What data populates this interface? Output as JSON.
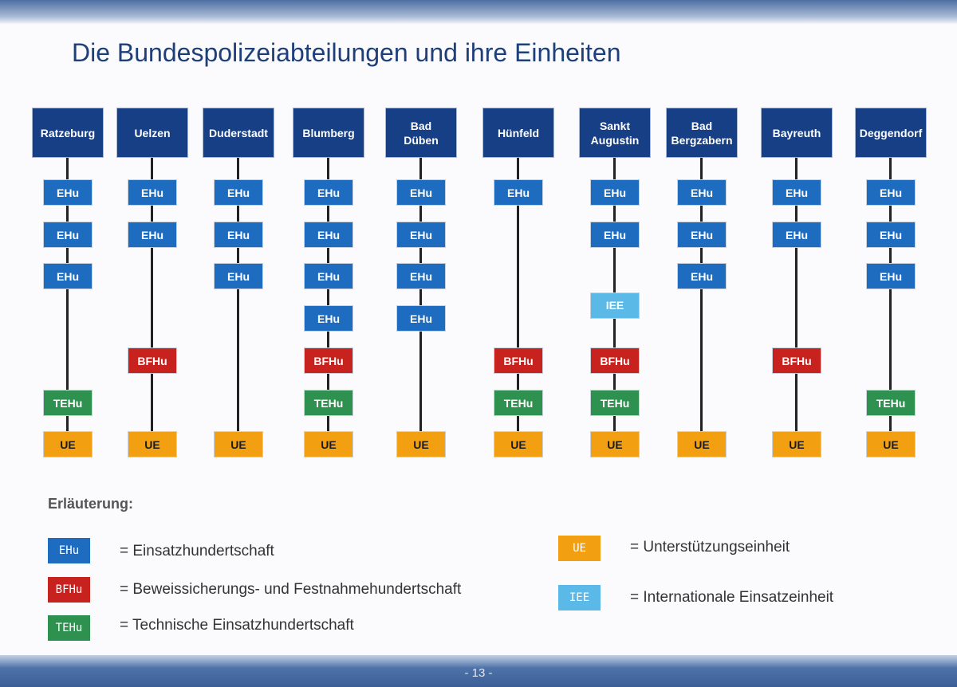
{
  "title": "Die Bundespolizeiabteilungen und ihre Einheiten",
  "colors": {
    "EHu": "#1e6cc0",
    "BFHu": "#c8221f",
    "TEHu": "#2f9150",
    "UE": "#f2a011",
    "IEE": "#5bb9e8",
    "header": "#163f85"
  },
  "divisions": [
    {
      "name": "Ratzeburg",
      "units": [
        "EHu",
        "EHu",
        "EHu",
        "TEHu",
        "UE"
      ]
    },
    {
      "name": "Uelzen",
      "units": [
        "EHu",
        "EHu",
        "BFHu",
        "UE"
      ]
    },
    {
      "name": "Duderstadt",
      "units": [
        "EHu",
        "EHu",
        "EHu",
        "UE"
      ]
    },
    {
      "name": "Blumberg",
      "units": [
        "EHu",
        "EHu",
        "EHu",
        "EHu",
        "BFHu",
        "TEHu",
        "UE"
      ]
    },
    {
      "name": "Bad Düben",
      "units": [
        "EHu",
        "EHu",
        "EHu",
        "EHu",
        "UE"
      ]
    },
    {
      "name": "Hünfeld",
      "units": [
        "EHu",
        "BFHu",
        "TEHu",
        "UE"
      ]
    },
    {
      "name": "Sankt Augustin",
      "units": [
        "EHu",
        "EHu",
        "IEE",
        "BFHu",
        "TEHu",
        "UE"
      ]
    },
    {
      "name": "Bad Bergzabern",
      "units": [
        "EHu",
        "EHu",
        "EHu",
        "UE"
      ]
    },
    {
      "name": "Bayreuth",
      "units": [
        "EHu",
        "EHu",
        "BFHu",
        "UE"
      ]
    },
    {
      "name": "Deggendorf",
      "units": [
        "EHu",
        "EHu",
        "EHu",
        "TEHu",
        "UE"
      ]
    }
  ],
  "legend": {
    "heading": "Erläuterung:",
    "items": [
      {
        "code": "EHu",
        "text": "= Einsatzhundertschaft"
      },
      {
        "code": "BFHu",
        "text": "= Beweissicherungs- und Festnahmehundertschaft"
      },
      {
        "code": "TEHu",
        "text": "= Technische Einsatzhundertschaft"
      },
      {
        "code": "UE",
        "text": "= Unterstützungseinheit"
      },
      {
        "code": "IEE",
        "text": "= Internationale Einsatzeinheit"
      }
    ]
  },
  "page_number": "- 13 -"
}
